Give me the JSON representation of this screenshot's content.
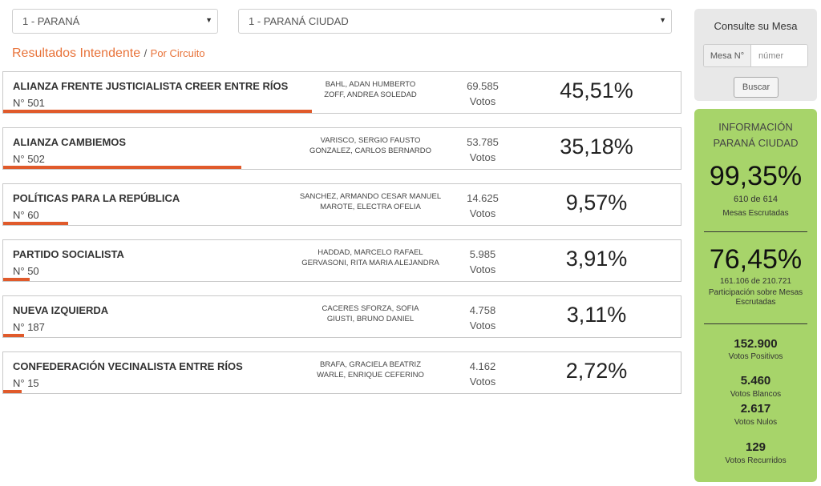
{
  "filters": {
    "departamento": "1 - PARANÁ",
    "circuito": "1 - PARANÁ CIUDAD",
    "caret": "▼"
  },
  "heading": {
    "title": "Resultados Intendente",
    "separator": "/",
    "link": "Por Circuito"
  },
  "results": [
    {
      "party": "ALIANZA FRENTE JUSTICIALISTA CREER ENTRE RÍOS",
      "number": "N° 501",
      "candidates": [
        "BAHL, ADAN HUMBERTO",
        "ZOFF, ANDREA SOLEDAD"
      ],
      "votes": "69.585",
      "votes_label": "Votos",
      "percent": "45,51%",
      "share": 45.51
    },
    {
      "party": "ALIANZA CAMBIEMOS",
      "number": "N° 502",
      "candidates": [
        "VARISCO, SERGIO FAUSTO",
        "GONZALEZ, CARLOS BERNARDO"
      ],
      "votes": "53.785",
      "votes_label": "Votos",
      "percent": "35,18%",
      "share": 35.18
    },
    {
      "party": "POLÍTICAS PARA LA REPÚBLICA",
      "number": "N° 60",
      "candidates": [
        "SANCHEZ, ARMANDO CESAR MANUEL",
        "MAROTE, ELECTRA OFELIA"
      ],
      "votes": "14.625",
      "votes_label": "Votos",
      "percent": "9,57%",
      "share": 9.57
    },
    {
      "party": "PARTIDO SOCIALISTA",
      "number": "N° 50",
      "candidates": [
        "HADDAD, MARCELO RAFAEL",
        "GERVASONI, RITA MARIA ALEJANDRA"
      ],
      "votes": "5.985",
      "votes_label": "Votos",
      "percent": "3,91%",
      "share": 3.91
    },
    {
      "party": "NUEVA IZQUIERDA",
      "number": "N° 187",
      "candidates": [
        "CACERES SFORZA, SOFIA",
        "GIUSTI, BRUNO DANIEL"
      ],
      "votes": "4.758",
      "votes_label": "Votos",
      "percent": "3,11%",
      "share": 3.11
    },
    {
      "party": "CONFEDERACIÓN VECINALISTA ENTRE RÍOS",
      "number": "N° 15",
      "candidates": [
        "BRAFA, GRACIELA BEATRIZ",
        "WARLE, ENRIQUE CEFERINO"
      ],
      "votes": "4.162",
      "votes_label": "Votos",
      "percent": "2,72%",
      "share": 2.72
    }
  ],
  "consulte": {
    "title": "Consulte su Mesa",
    "mesa_label": "Mesa N°",
    "mesa_placeholder": "númer",
    "button": "Buscar"
  },
  "info": {
    "title_line1": "INFORMACIÓN",
    "title_line2": "PARANÁ CIUDAD",
    "mesas_pct": "99,35%",
    "mesas_count": "610 de 614",
    "mesas_label": "Mesas Escrutadas",
    "part_pct": "76,45%",
    "part_count": "161.106 de 210.721",
    "part_label": "Participación sobre Mesas Escrutadas",
    "positivos": "152.900",
    "positivos_label": "Votos Positivos",
    "blancos": "5.460",
    "blancos_label": "Votos Blancos",
    "nulos": "2.617",
    "nulos_label": "Votos Nulos",
    "recurridos": "129",
    "recurridos_label": "Votos Recurridos"
  },
  "colors": {
    "accent": "#e8733a",
    "bar": "#e05a2b",
    "info_bg": "#a7d46a"
  }
}
